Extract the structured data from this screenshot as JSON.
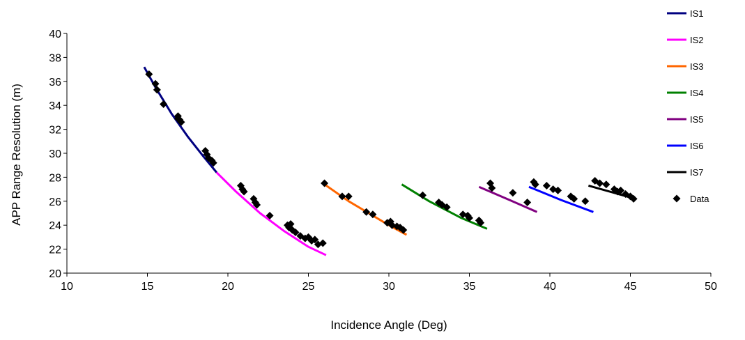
{
  "chart_data": {
    "type": "line",
    "title": "",
    "xlabel": "Incidence Angle (Deg)",
    "ylabel": "APP Range Resolution (m)",
    "xlim": [
      10,
      50
    ],
    "ylim": [
      20,
      40
    ],
    "xticks": [
      10,
      15,
      20,
      25,
      30,
      35,
      40,
      45,
      50
    ],
    "yticks": [
      20,
      22,
      24,
      26,
      28,
      30,
      32,
      34,
      36,
      38,
      40
    ],
    "grid": false,
    "legend_position": "right",
    "series": [
      {
        "name": "IS1",
        "kind": "line",
        "color": "#000080",
        "x": [
          14.8,
          15.5,
          16.5,
          17.5,
          18.5,
          19.3
        ],
        "y": [
          37.2,
          35.5,
          33.3,
          31.4,
          29.7,
          28.4
        ]
      },
      {
        "name": "IS2",
        "kind": "line",
        "color": "#ff00ff",
        "x": [
          19.3,
          20.5,
          22.0,
          23.5,
          25.0,
          26.1
        ],
        "y": [
          28.4,
          26.8,
          25.0,
          23.5,
          22.2,
          21.5
        ]
      },
      {
        "name": "IS3",
        "kind": "line",
        "color": "#ff6600",
        "x": [
          25.9,
          27.5,
          29.0,
          30.0,
          31.1
        ],
        "y": [
          27.5,
          26.0,
          24.8,
          24.0,
          23.2
        ]
      },
      {
        "name": "IS4",
        "kind": "line",
        "color": "#008000",
        "x": [
          30.8,
          32.5,
          34.5,
          36.1
        ],
        "y": [
          27.4,
          26.0,
          24.6,
          23.7
        ]
      },
      {
        "name": "IS5",
        "kind": "line",
        "color": "#800080",
        "x": [
          35.6,
          37.5,
          39.2
        ],
        "y": [
          27.2,
          26.1,
          25.1
        ]
      },
      {
        "name": "IS6",
        "kind": "line",
        "color": "#0000ff",
        "x": [
          38.7,
          40.7,
          42.7
        ],
        "y": [
          27.2,
          26.1,
          25.1
        ]
      },
      {
        "name": "IS7",
        "kind": "line",
        "color": "#000000",
        "x": [
          42.4,
          44.0,
          45.3
        ],
        "y": [
          27.3,
          26.7,
          26.2
        ]
      },
      {
        "name": "Data",
        "kind": "scatter",
        "color": "#000000",
        "x": [
          15.1,
          15.5,
          15.6,
          16.0,
          16.9,
          17.0,
          17.1,
          16.9,
          18.6,
          18.7,
          18.8,
          19.0,
          19.1,
          20.8,
          20.9,
          21.0,
          21.6,
          21.7,
          21.8,
          22.6,
          23.7,
          23.8,
          23.9,
          24.0,
          24.2,
          24.5,
          24.8,
          25.0,
          25.2,
          25.4,
          25.6,
          25.9,
          26.0,
          27.1,
          27.5,
          28.6,
          29.0,
          29.9,
          30.1,
          30.2,
          30.5,
          30.7,
          30.9,
          32.1,
          33.1,
          33.3,
          33.6,
          34.6,
          34.9,
          35.0,
          35.6,
          35.7,
          36.3,
          36.4,
          37.7,
          38.6,
          39.0,
          39.1,
          39.8,
          40.2,
          40.5,
          41.3,
          41.5,
          42.2,
          42.8,
          43.1,
          43.5,
          44.0,
          44.2,
          44.4,
          44.7,
          45.0,
          45.2
        ],
        "y": [
          36.6,
          35.8,
          35.3,
          34.1,
          33.1,
          32.8,
          32.6,
          32.9,
          30.2,
          29.9,
          29.6,
          29.4,
          29.2,
          27.3,
          27.0,
          26.8,
          26.2,
          25.9,
          25.7,
          24.8,
          24.0,
          23.8,
          24.1,
          23.6,
          23.4,
          23.1,
          22.9,
          23.0,
          22.7,
          22.8,
          22.4,
          22.5,
          27.5,
          26.4,
          26.4,
          25.1,
          24.9,
          24.2,
          24.3,
          24.0,
          23.9,
          23.8,
          23.6,
          26.5,
          25.9,
          25.7,
          25.5,
          24.9,
          24.8,
          24.6,
          24.4,
          24.2,
          27.5,
          27.1,
          26.7,
          25.9,
          27.6,
          27.4,
          27.3,
          27.0,
          26.9,
          26.4,
          26.2,
          26.0,
          27.7,
          27.5,
          27.4,
          27.0,
          26.8,
          26.9,
          26.6,
          26.4,
          26.2
        ]
      }
    ]
  }
}
